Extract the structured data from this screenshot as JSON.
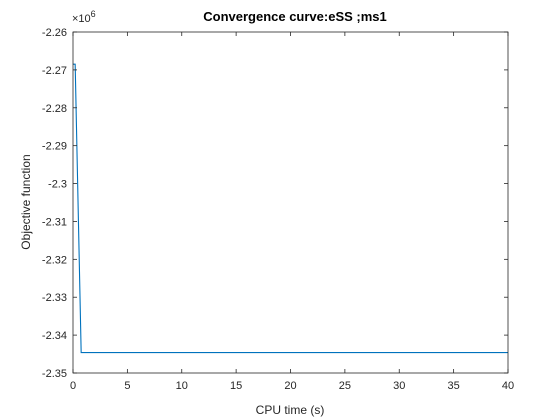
{
  "chart_data": {
    "type": "line",
    "title": "Convergence curve:eSS ;ms1",
    "xlabel": "CPU time (s)",
    "ylabel": "Objective function",
    "xlim": [
      0,
      40
    ],
    "ylim": [
      -2.35,
      -2.26
    ],
    "y_multiplier_base": "×10",
    "y_multiplier_exponent": "6",
    "xticks": [
      0,
      5,
      10,
      15,
      20,
      25,
      30,
      35,
      40
    ],
    "xtick_labels": [
      "0",
      "5",
      "10",
      "15",
      "20",
      "25",
      "30",
      "35",
      "40"
    ],
    "yticks": [
      -2.26,
      -2.27,
      -2.28,
      -2.29,
      -2.3,
      -2.31,
      -2.32,
      -2.33,
      -2.34,
      -2.35
    ],
    "ytick_labels": [
      "-2.26",
      "-2.27",
      "-2.28",
      "-2.29",
      "-2.3",
      "-2.31",
      "-2.32",
      "-2.33",
      "-2.34",
      "-2.35"
    ],
    "grid": false,
    "series": [
      {
        "color": "#0072BD",
        "x": [
          0,
          0.2,
          0.75,
          40
        ],
        "y": [
          -2.2685,
          -2.2685,
          -2.3446,
          -2.3446
        ]
      }
    ]
  }
}
